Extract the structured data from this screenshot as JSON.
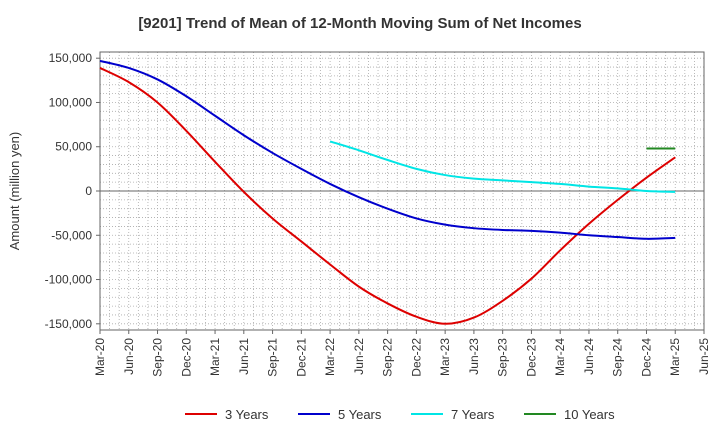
{
  "chart_data": {
    "type": "line",
    "title": "[9201]  Trend of Mean of 12-Month Moving Sum of Net Incomes",
    "ylabel": "Amount (million yen)",
    "xlabel": "",
    "x_tick_labels": [
      "Mar-20",
      "Jun-20",
      "Sep-20",
      "Dec-20",
      "Mar-21",
      "Jun-21",
      "Sep-21",
      "Dec-21",
      "Mar-22",
      "Jun-22",
      "Sep-22",
      "Dec-22",
      "Mar-23",
      "Jun-23",
      "Sep-23",
      "Dec-23",
      "Mar-24",
      "Jun-24",
      "Sep-24",
      "Dec-24",
      "Mar-25",
      "Jun-25"
    ],
    "y_tick_labels": [
      "150,000",
      "100,000",
      "50,000",
      "0",
      "-50,000",
      "-100,000",
      "-150,000"
    ],
    "y_ticks": [
      150000,
      100000,
      50000,
      0,
      -50000,
      -100000,
      -150000
    ],
    "ylim": [
      -157000,
      157000
    ],
    "xlim": [
      "Mar-20",
      "Jun-25"
    ],
    "grid": true,
    "legend_position": "bottom",
    "series": [
      {
        "name": "3 Years",
        "color": "#dd0000",
        "points": [
          [
            "Mar-20",
            139000
          ],
          [
            "Jun-20",
            123000
          ],
          [
            "Sep-20",
            100000
          ],
          [
            "Dec-20",
            68000
          ],
          [
            "Mar-21",
            33000
          ],
          [
            "Jun-21",
            -1000
          ],
          [
            "Sep-21",
            -31000
          ],
          [
            "Dec-21",
            -57000
          ],
          [
            "Mar-22",
            -83000
          ],
          [
            "Jun-22",
            -108000
          ],
          [
            "Sep-22",
            -127000
          ],
          [
            "Dec-22",
            -142000
          ],
          [
            "Mar-23",
            -150000
          ],
          [
            "Jun-23",
            -143000
          ],
          [
            "Sep-23",
            -124000
          ],
          [
            "Dec-23",
            -99000
          ],
          [
            "Mar-24",
            -67000
          ],
          [
            "Jun-24",
            -37000
          ],
          [
            "Sep-24",
            -10000
          ],
          [
            "Dec-24",
            15000
          ],
          [
            "Mar-25",
            38000
          ]
        ]
      },
      {
        "name": "5 Years",
        "color": "#0000cc",
        "points": [
          [
            "Mar-20",
            147000
          ],
          [
            "Jun-20",
            139000
          ],
          [
            "Sep-20",
            126000
          ],
          [
            "Dec-20",
            107000
          ],
          [
            "Mar-21",
            85000
          ],
          [
            "Jun-21",
            63000
          ],
          [
            "Sep-21",
            43000
          ],
          [
            "Dec-21",
            25000
          ],
          [
            "Mar-22",
            8000
          ],
          [
            "Jun-22",
            -7000
          ],
          [
            "Sep-22",
            -20000
          ],
          [
            "Dec-22",
            -31000
          ],
          [
            "Mar-23",
            -38000
          ],
          [
            "Jun-23",
            -42000
          ],
          [
            "Sep-23",
            -44000
          ],
          [
            "Dec-23",
            -45000
          ],
          [
            "Mar-24",
            -47000
          ],
          [
            "Jun-24",
            -50000
          ],
          [
            "Sep-24",
            -52000
          ],
          [
            "Dec-24",
            -54000
          ],
          [
            "Mar-25",
            -53000
          ]
        ]
      },
      {
        "name": "7 Years",
        "color": "#00e5e5",
        "points": [
          [
            "Mar-22",
            56000
          ],
          [
            "Jun-22",
            46000
          ],
          [
            "Sep-22",
            35000
          ],
          [
            "Dec-22",
            25000
          ],
          [
            "Mar-23",
            18000
          ],
          [
            "Jun-23",
            14000
          ],
          [
            "Sep-23",
            12000
          ],
          [
            "Dec-23",
            10000
          ],
          [
            "Mar-24",
            8000
          ],
          [
            "Jun-24",
            5000
          ],
          [
            "Sep-24",
            3000
          ],
          [
            "Dec-24",
            0
          ],
          [
            "Mar-25",
            -1000
          ]
        ]
      },
      {
        "name": "10 Years",
        "color": "#228822",
        "points": [
          [
            "Dec-24",
            48000
          ],
          [
            "Mar-25",
            48000
          ]
        ]
      }
    ]
  }
}
